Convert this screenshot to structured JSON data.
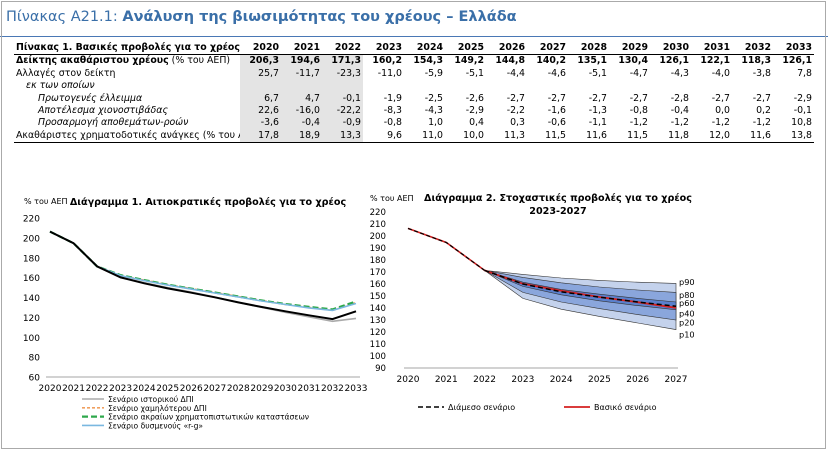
{
  "header": {
    "prefix": "Πίνακας Α21.1: ",
    "subtitle": "Ανάλυση της βιωσιμότητας του χρέους – Ελλάδα"
  },
  "table": {
    "title": "Πίνακας 1. Βασικές προβολές για το χρέος",
    "years": [
      "2020",
      "2021",
      "2022",
      "2023",
      "2024",
      "2025",
      "2026",
      "2027",
      "2028",
      "2029",
      "2030",
      "2031",
      "2032",
      "2033"
    ],
    "rows": [
      {
        "label": "Δείκτης ακαθάριστου χρέους",
        "unit": " (% του ΑΕΠ)",
        "style": "bold",
        "values": [
          "206,3",
          "194,6",
          "171,3",
          "160,2",
          "154,3",
          "149,2",
          "144,8",
          "140,2",
          "135,1",
          "130,4",
          "126,1",
          "122,1",
          "118,3",
          "126,1"
        ]
      },
      {
        "label": "Αλλαγές στον δείκτη",
        "unit": "",
        "style": "normal",
        "values": [
          "25,7",
          "-11,7",
          "-23,3",
          "-11,0",
          "-5,9",
          "-5,1",
          "-4,4",
          "-4,6",
          "-5,1",
          "-4,7",
          "-4,3",
          "-4,0",
          "-3,8",
          "7,8"
        ]
      },
      {
        "label": "εκ των οποίων",
        "unit": "",
        "style": "ind1",
        "values": [
          "",
          "",
          "",
          "",
          "",
          "",
          "",
          "",
          "",
          "",
          "",
          "",
          "",
          ""
        ]
      },
      {
        "label": "Πρωτογενές έλλειμμα",
        "unit": "",
        "style": "ind2",
        "values": [
          "6,7",
          "4,7",
          "-0,1",
          "-1,9",
          "-2,5",
          "-2,6",
          "-2,7",
          "-2,7",
          "-2,7",
          "-2,7",
          "-2,8",
          "-2,7",
          "-2,7",
          "-2,9"
        ]
      },
      {
        "label": "Αποτέλεσμα χιονοστιβάδας",
        "unit": "",
        "style": "ind2",
        "values": [
          "22,6",
          "-16,0",
          "-22,2",
          "-8,3",
          "-4,3",
          "-2,9",
          "-2,2",
          "-1,6",
          "-1,3",
          "-0,8",
          "-0,4",
          "0,0",
          "0,2",
          "-0,1"
        ]
      },
      {
        "label": "Προσαρμογή αποθεμάτων-ροών",
        "unit": "",
        "style": "ind2",
        "values": [
          "-3,6",
          "-0,4",
          "-0,9",
          "-0,8",
          "1,0",
          "0,4",
          "0,3",
          "-0,6",
          "-1,1",
          "-1,2",
          "-1,2",
          "-1,2",
          "-1,2",
          "10,8"
        ]
      },
      {
        "label": "Ακαθάριστες χρηματοδοτικές ανάγκες",
        "unit": " (% του ΑΕΠ)",
        "style": "normal",
        "values": [
          "17,8",
          "18,9",
          "13,3",
          "9,6",
          "11,0",
          "10,0",
          "11,3",
          "11,5",
          "11,6",
          "11,5",
          "11,8",
          "12,0",
          "11,6",
          "13,8"
        ]
      }
    ]
  },
  "chart_data": [
    {
      "type": "line",
      "title": "Διάγραμμα 1. Αιτιοκρατικές προβολές για το χρέος",
      "ylabel": "% του ΑΕΠ",
      "ylim": [
        60,
        220
      ],
      "yticks": [
        60,
        80,
        100,
        120,
        140,
        160,
        180,
        200,
        220
      ],
      "x": [
        "2020",
        "2021",
        "2022",
        "2023",
        "2024",
        "2025",
        "2026",
        "2027",
        "2028",
        "2029",
        "2030",
        "2031",
        "2032",
        "2033"
      ],
      "baseline": {
        "values": [
          206.3,
          194.6,
          171.3,
          160.2,
          154.3,
          149.2,
          144.8,
          140.2,
          135.1,
          130.4,
          126.1,
          122.1,
          118.3,
          126.1
        ],
        "color": "#000000"
      },
      "series": [
        {
          "name": "Σενάριο ιστορικού ΔΠΙ",
          "color": "#aaaaaa",
          "dash": "solid",
          "values": [
            206.3,
            194.6,
            171.3,
            160.5,
            155.0,
            150.0,
            145.5,
            140.5,
            135.0,
            130.0,
            125.0,
            120.5,
            116.0,
            119.0
          ]
        },
        {
          "name": "Σενάριο χαμηλότερου ΔΠΙ",
          "color": "#f0a060",
          "dash": "dashed",
          "values": [
            206.3,
            194.6,
            171.3,
            162.0,
            157.5,
            153.0,
            149.0,
            145.0,
            141.0,
            137.0,
            133.0,
            130.0,
            127.0,
            135.0
          ]
        },
        {
          "name": "Σενάριο ακραίων χρηματοπιστωτικών καταστάσεων",
          "color": "#2ea84c",
          "dash": "longdash",
          "values": [
            206.3,
            194.6,
            171.3,
            162.5,
            157.5,
            153.0,
            149.0,
            145.0,
            141.0,
            137.0,
            133.5,
            130.5,
            128.0,
            136.0
          ]
        },
        {
          "name": "Σενάριο δυσμενούς «r-g»",
          "color": "#7ab8e0",
          "dash": "solid",
          "values": [
            206.3,
            194.6,
            171.3,
            162.0,
            157.0,
            152.5,
            148.5,
            144.5,
            140.5,
            136.5,
            133.0,
            129.5,
            127.0,
            134.0
          ]
        }
      ]
    },
    {
      "type": "area",
      "title": "Διάγραμμα 2. Στοχαστικές προβολές για το χρέος",
      "subtitle": "2023-2027",
      "ylabel": "% του ΑΕΠ",
      "ylim": [
        90,
        220
      ],
      "yticks": [
        90,
        100,
        110,
        120,
        130,
        140,
        150,
        160,
        170,
        180,
        190,
        200,
        210,
        220
      ],
      "x": [
        "2020",
        "2021",
        "2022",
        "2023",
        "2024",
        "2025",
        "2026",
        "2027"
      ],
      "history": [
        206.3,
        194.6,
        171.3
      ],
      "fan_x": [
        "2022",
        "2023",
        "2024",
        "2025",
        "2026",
        "2027"
      ],
      "bands": {
        "p10": [
          171.3,
          148.0,
          139.0,
          133.0,
          127.5,
          122.0
        ],
        "p20": [
          171.3,
          153.0,
          145.0,
          139.5,
          134.5,
          130.0
        ],
        "p40": [
          171.3,
          158.0,
          151.0,
          146.0,
          142.0,
          138.5
        ],
        "p60": [
          171.3,
          161.5,
          155.5,
          151.5,
          148.0,
          145.0
        ],
        "p80": [
          171.3,
          165.5,
          161.0,
          157.5,
          155.0,
          153.0
        ],
        "p90": [
          171.3,
          168.0,
          165.0,
          163.0,
          161.5,
          160.5
        ]
      },
      "band_labels": [
        "p90",
        "p80",
        "p60",
        "p40",
        "p20",
        "p10"
      ],
      "band_colors": {
        "outer": "#c4d2ec",
        "mid": "#8aa6dc",
        "inner": "#5a80cc"
      },
      "median": {
        "name": "Διάμεσο σενάριο",
        "color": "#000000",
        "values": [
          171.3,
          160.0,
          153.5,
          149.0,
          145.0,
          141.5
        ]
      },
      "baseline": {
        "name": "Βασικό σενάριο",
        "color": "#d42020",
        "values": [
          171.3,
          160.2,
          154.3,
          149.2,
          144.8,
          140.2
        ]
      }
    }
  ]
}
